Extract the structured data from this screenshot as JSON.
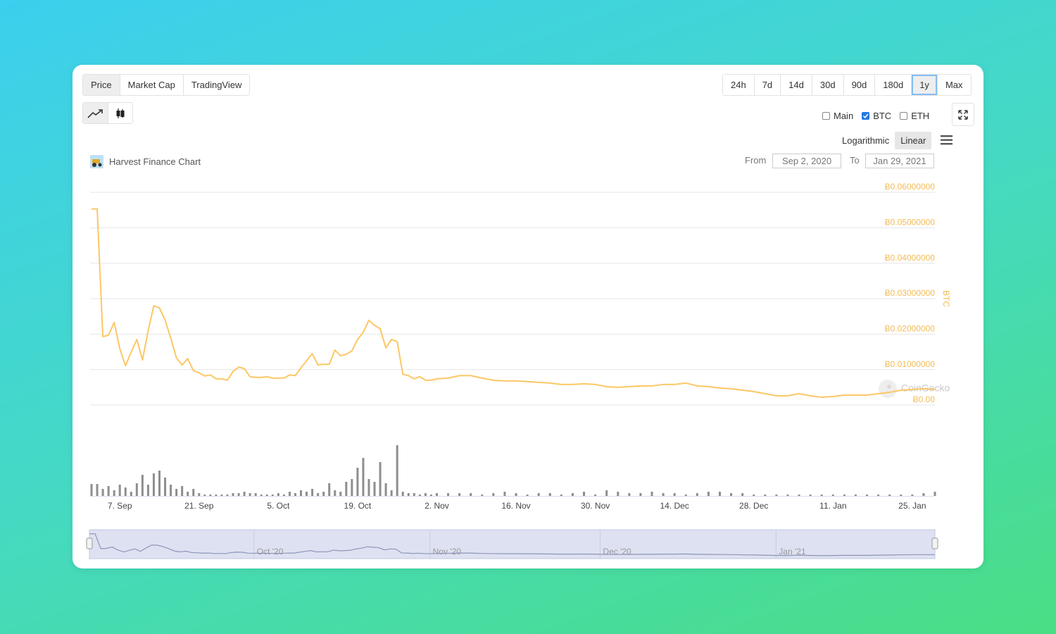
{
  "tabs": [
    "Price",
    "Market Cap",
    "TradingView"
  ],
  "active_tab": 0,
  "ranges": [
    "24h",
    "7d",
    "14d",
    "30d",
    "90d",
    "180d",
    "1y",
    "Max"
  ],
  "active_range": 6,
  "toggles": [
    {
      "label": "Main",
      "checked": false
    },
    {
      "label": "BTC",
      "checked": true
    },
    {
      "label": "ETH",
      "checked": false
    }
  ],
  "scales": [
    "Logarithmic",
    "Linear"
  ],
  "active_scale": 1,
  "range_picker": {
    "from_label": "From",
    "from": "Sep 2, 2020",
    "to_label": "To",
    "to": "Jan 29, 2021"
  },
  "watermark": "CoinGecko",
  "chart_data": {
    "type": "line",
    "title": "Harvest Finance Chart",
    "y_label": "BTC",
    "color": "#fcc765",
    "grid": true,
    "xlim": [
      "2020-09-02",
      "2021-01-29"
    ],
    "ylim": [
      0,
      0.06
    ],
    "yticks": [
      {
        "value": 0,
        "label": "Ƀ0.00"
      },
      {
        "value": 0.01,
        "label": "Ƀ0.01000000"
      },
      {
        "value": 0.02,
        "label": "Ƀ0.02000000"
      },
      {
        "value": 0.03,
        "label": "Ƀ0.03000000"
      },
      {
        "value": 0.04,
        "label": "Ƀ0.04000000"
      },
      {
        "value": 0.05,
        "label": "Ƀ0.05000000"
      },
      {
        "value": 0.06,
        "label": "Ƀ0.06000000"
      }
    ],
    "xticks": [
      {
        "value": "2020-09-07",
        "label": "7. Sep"
      },
      {
        "value": "2020-09-21",
        "label": "21. Sep"
      },
      {
        "value": "2020-10-05",
        "label": "5. Oct"
      },
      {
        "value": "2020-10-19",
        "label": "19. Oct"
      },
      {
        "value": "2020-11-02",
        "label": "2. Nov"
      },
      {
        "value": "2020-11-16",
        "label": "16. Nov"
      },
      {
        "value": "2020-11-30",
        "label": "30. Nov"
      },
      {
        "value": "2020-12-14",
        "label": "14. Dec"
      },
      {
        "value": "2020-12-28",
        "label": "28. Dec"
      },
      {
        "value": "2021-01-11",
        "label": "11. Jan"
      },
      {
        "value": "2021-01-25",
        "label": "25. Jan"
      }
    ],
    "navigator_ticks": [
      {
        "value": "2020-10-01",
        "label": "Oct '20"
      },
      {
        "value": "2020-11-01",
        "label": "Nov '20"
      },
      {
        "value": "2020-12-01",
        "label": "Dec '20"
      },
      {
        "value": "2021-01-01",
        "label": "Jan '21"
      }
    ],
    "x": [
      "2020-09-02",
      "2020-09-03",
      "2020-09-04",
      "2020-09-05",
      "2020-09-06",
      "2020-09-07",
      "2020-09-08",
      "2020-09-09",
      "2020-09-10",
      "2020-09-11",
      "2020-09-12",
      "2020-09-13",
      "2020-09-14",
      "2020-09-15",
      "2020-09-16",
      "2020-09-17",
      "2020-09-18",
      "2020-09-19",
      "2020-09-20",
      "2020-09-21",
      "2020-09-22",
      "2020-09-23",
      "2020-09-24",
      "2020-09-25",
      "2020-09-26",
      "2020-09-27",
      "2020-09-28",
      "2020-09-29",
      "2020-09-30",
      "2020-10-01",
      "2020-10-02",
      "2020-10-03",
      "2020-10-04",
      "2020-10-05",
      "2020-10-06",
      "2020-10-07",
      "2020-10-08",
      "2020-10-09",
      "2020-10-10",
      "2020-10-11",
      "2020-10-12",
      "2020-10-13",
      "2020-10-14",
      "2020-10-15",
      "2020-10-16",
      "2020-10-17",
      "2020-10-18",
      "2020-10-19",
      "2020-10-20",
      "2020-10-21",
      "2020-10-22",
      "2020-10-23",
      "2020-10-24",
      "2020-10-25",
      "2020-10-26",
      "2020-10-27",
      "2020-10-28",
      "2020-10-29",
      "2020-10-30",
      "2020-10-31",
      "2020-11-01",
      "2020-11-02",
      "2020-11-04",
      "2020-11-06",
      "2020-11-08",
      "2020-11-10",
      "2020-11-12",
      "2020-11-14",
      "2020-11-16",
      "2020-11-18",
      "2020-11-20",
      "2020-11-22",
      "2020-11-24",
      "2020-11-26",
      "2020-11-28",
      "2020-11-30",
      "2020-12-02",
      "2020-12-04",
      "2020-12-06",
      "2020-12-08",
      "2020-12-10",
      "2020-12-12",
      "2020-12-14",
      "2020-12-16",
      "2020-12-18",
      "2020-12-20",
      "2020-12-22",
      "2020-12-24",
      "2020-12-26",
      "2020-12-28",
      "2020-12-30",
      "2021-01-01",
      "2021-01-03",
      "2021-01-05",
      "2021-01-07",
      "2021-01-09",
      "2021-01-11",
      "2021-01-13",
      "2021-01-15",
      "2021-01-17",
      "2021-01-19",
      "2021-01-21",
      "2021-01-23",
      "2021-01-25",
      "2021-01-27",
      "2021-01-29"
    ],
    "values": [
      0.0553,
      0.0553,
      0.0193,
      0.0197,
      0.0233,
      0.0159,
      0.0111,
      0.0149,
      0.0185,
      0.0127,
      0.0209,
      0.028,
      0.0274,
      0.0239,
      0.0189,
      0.0133,
      0.0113,
      0.0131,
      0.0097,
      0.0091,
      0.0082,
      0.0085,
      0.0074,
      0.0074,
      0.007,
      0.0095,
      0.0107,
      0.0103,
      0.008,
      0.0078,
      0.0078,
      0.008,
      0.0076,
      0.0076,
      0.0076,
      0.0085,
      0.0083,
      0.0105,
      0.0125,
      0.0145,
      0.0113,
      0.0115,
      0.0115,
      0.0155,
      0.0139,
      0.0143,
      0.0153,
      0.0185,
      0.0205,
      0.0239,
      0.0225,
      0.0215,
      0.0161,
      0.0185,
      0.0179,
      0.0087,
      0.0083,
      0.0074,
      0.008,
      0.007,
      0.007,
      0.0074,
      0.0076,
      0.0083,
      0.0083,
      0.0076,
      0.007,
      0.0068,
      0.0068,
      0.0066,
      0.0064,
      0.0062,
      0.0058,
      0.0058,
      0.006,
      0.0058,
      0.0052,
      0.005,
      0.0052,
      0.0054,
      0.0054,
      0.0058,
      0.0058,
      0.0062,
      0.0054,
      0.0052,
      0.0048,
      0.0046,
      0.0042,
      0.0038,
      0.0032,
      0.0026,
      0.0026,
      0.0032,
      0.0026,
      0.0022,
      0.0024,
      0.0028,
      0.0028,
      0.0028,
      0.0032,
      0.0036,
      0.0042,
      0.0044,
      0.0046,
      0.0044
    ],
    "volume": {
      "color": "#8e8e8e",
      "ylim": [
        0,
        75
      ],
      "values": [
        17,
        17,
        10,
        14,
        8,
        16,
        12,
        6,
        18,
        30,
        16,
        32,
        36,
        26,
        16,
        10,
        14,
        6,
        10,
        4,
        2,
        2,
        2,
        2,
        2,
        4,
        4,
        6,
        4,
        4,
        2,
        2,
        2,
        4,
        2,
        6,
        4,
        8,
        6,
        10,
        4,
        6,
        18,
        8,
        6,
        20,
        24,
        40,
        54,
        24,
        20,
        48,
        18,
        8,
        72,
        6,
        4,
        4,
        2,
        4,
        2,
        4,
        4,
        4,
        4,
        2,
        4,
        6,
        4,
        2,
        4,
        4,
        2,
        4,
        6,
        2,
        8,
        6,
        4,
        4,
        6,
        4,
        4,
        2,
        4,
        6,
        6,
        4,
        4,
        2,
        2,
        2,
        2,
        2,
        2,
        2,
        2,
        2,
        2,
        2,
        2,
        2,
        2,
        2,
        4,
        6
      ]
    }
  }
}
